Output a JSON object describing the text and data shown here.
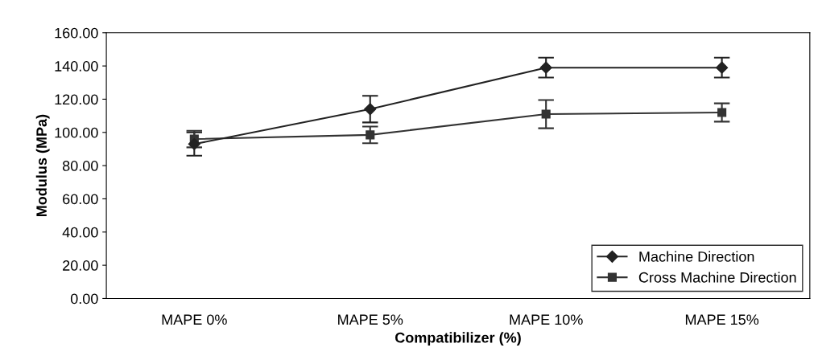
{
  "chart_data": {
    "type": "line",
    "xlabel": "Compatibilizer (%)",
    "ylabel": "Modulus (MPa)",
    "categories": [
      "MAPE 0%",
      "MAPE 5%",
      "MAPE 10%",
      "MAPE 15%"
    ],
    "series": [
      {
        "name": "Machine Direction",
        "color": "#222222",
        "marker": "diamond",
        "values": [
          93,
          114,
          139,
          139
        ],
        "errors": [
          7,
          8,
          6,
          6
        ]
      },
      {
        "name": "Cross Machine Direction",
        "color": "#333333",
        "marker": "square",
        "values": [
          96,
          98.5,
          111,
          112
        ],
        "errors": [
          5,
          5,
          8.5,
          5.5
        ]
      }
    ],
    "ylim": [
      0,
      160
    ],
    "yticks": [
      {
        "value": 0,
        "label": "0.00"
      },
      {
        "value": 20,
        "label": "20.00"
      },
      {
        "value": 40,
        "label": "40.00"
      },
      {
        "value": 60,
        "label": "60.00"
      },
      {
        "value": 80,
        "label": "80.00"
      },
      {
        "value": 100,
        "label": "100.00"
      },
      {
        "value": 120,
        "label": "120.00"
      },
      {
        "value": 140,
        "label": "140.00"
      },
      {
        "value": 160,
        "label": "160.00"
      }
    ],
    "grid": false,
    "legend": "bottom right",
    "line_style": "solid"
  }
}
